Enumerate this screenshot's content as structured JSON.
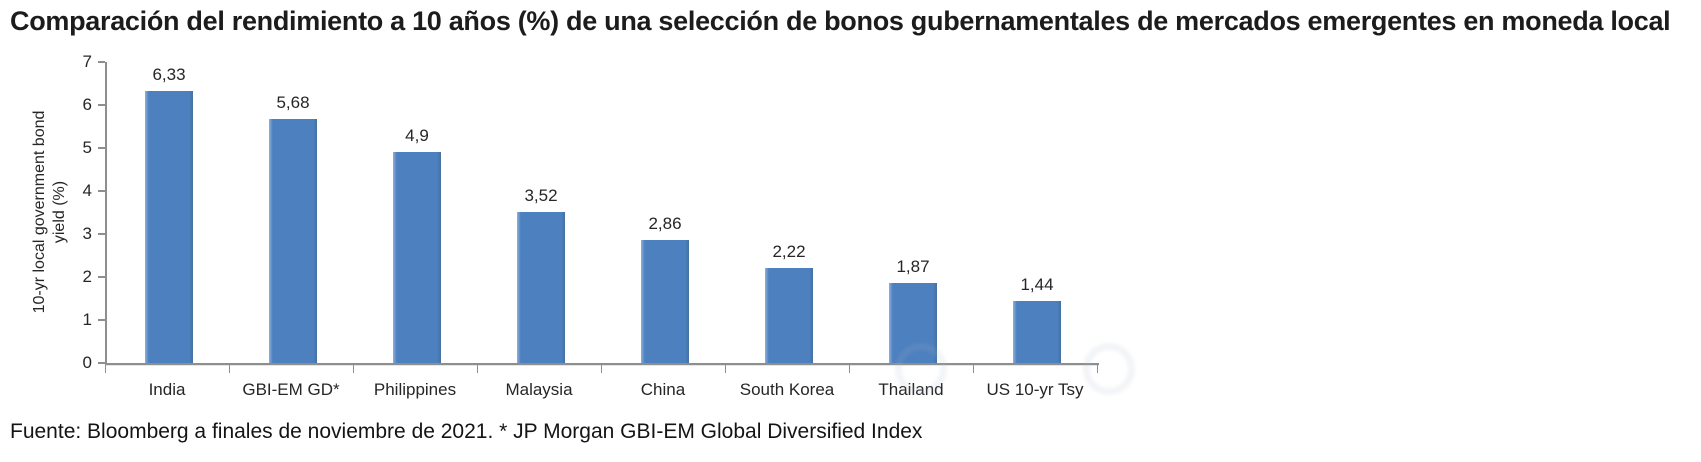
{
  "chart_data": {
    "type": "bar",
    "title": "Comparación del rendimiento a 10 años (%) de una selección de bonos gubernamentales de mercados emergentes en moneda local",
    "categories": [
      "India",
      "GBI-EM GD*",
      "Philippines",
      "Malaysia",
      "China",
      "South Korea",
      "Thailand",
      "US 10-yr Tsy"
    ],
    "values": [
      6.33,
      5.68,
      4.9,
      3.52,
      2.86,
      2.22,
      1.87,
      1.44
    ],
    "value_labels": [
      "6,33",
      "5,68",
      "4,9",
      "3,52",
      "2,86",
      "2,22",
      "1,87",
      "1,44"
    ],
    "xlabel": "",
    "ylabel": "10-yr local government bond yield (%)",
    "ylim": [
      0,
      7
    ],
    "yticks": [
      0,
      1,
      2,
      3,
      4,
      5,
      6,
      7
    ],
    "bar_color": "#4d80bf",
    "axis_color": "#8e8e8e",
    "grid": false,
    "legend": false
  },
  "footer": {
    "source": "Fuente: Bloomberg a finales de noviembre de 2021. * JP Morgan GBI-EM Global Diversified Index"
  }
}
